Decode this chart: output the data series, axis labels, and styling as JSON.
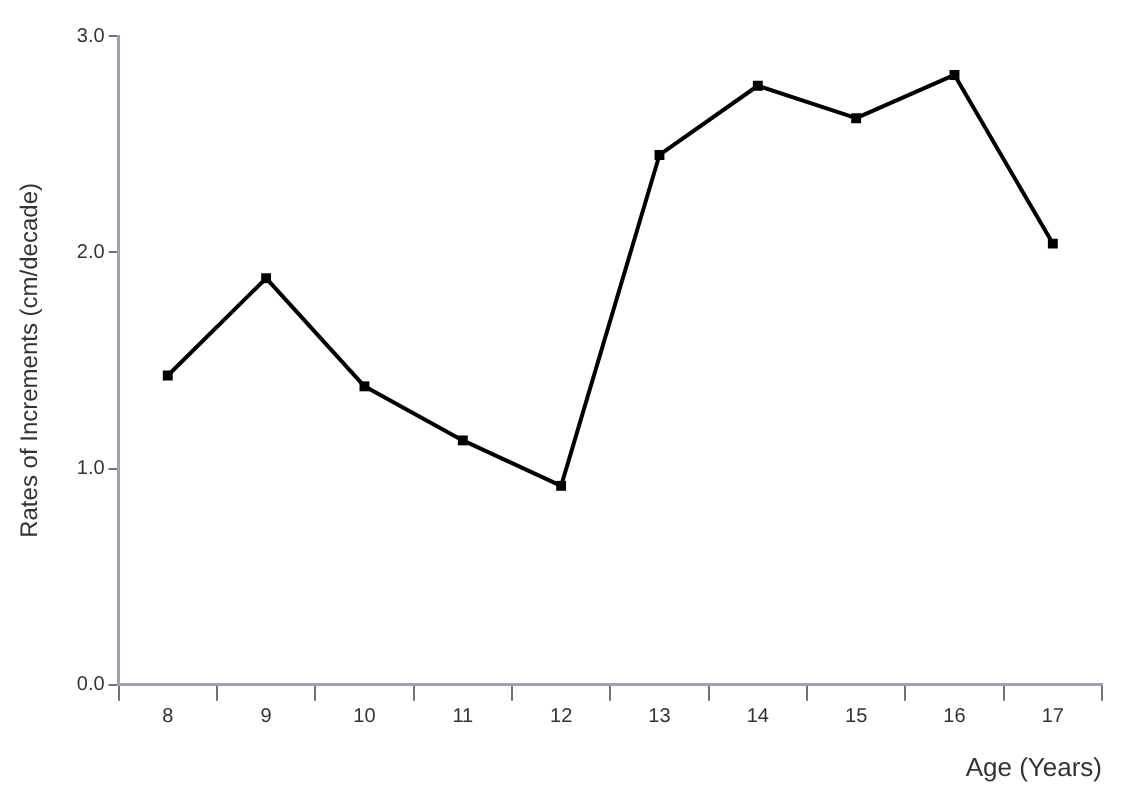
{
  "chart_data": {
    "type": "line",
    "xlabel": "Age (Years)",
    "ylabel": "Rates of Increments (cm/decade)",
    "categories": [
      "8",
      "9",
      "10",
      "11",
      "12",
      "13",
      "14",
      "15",
      "16",
      "17"
    ],
    "series": [
      {
        "color": "#000000",
        "values": [
          1.43,
          1.88,
          1.38,
          1.13,
          0.92,
          2.45,
          2.77,
          2.62,
          2.82,
          2.04
        ]
      }
    ],
    "ylim": [
      0,
      3
    ],
    "yticks": [
      {
        "value": 0,
        "label": "0.0"
      },
      {
        "value": 1,
        "label": "1.0"
      },
      {
        "value": 2,
        "label": "2.0"
      },
      {
        "value": 3,
        "label": "3.0"
      }
    ],
    "grid": false,
    "legend": false,
    "marker": "square",
    "line_style": "solid"
  }
}
